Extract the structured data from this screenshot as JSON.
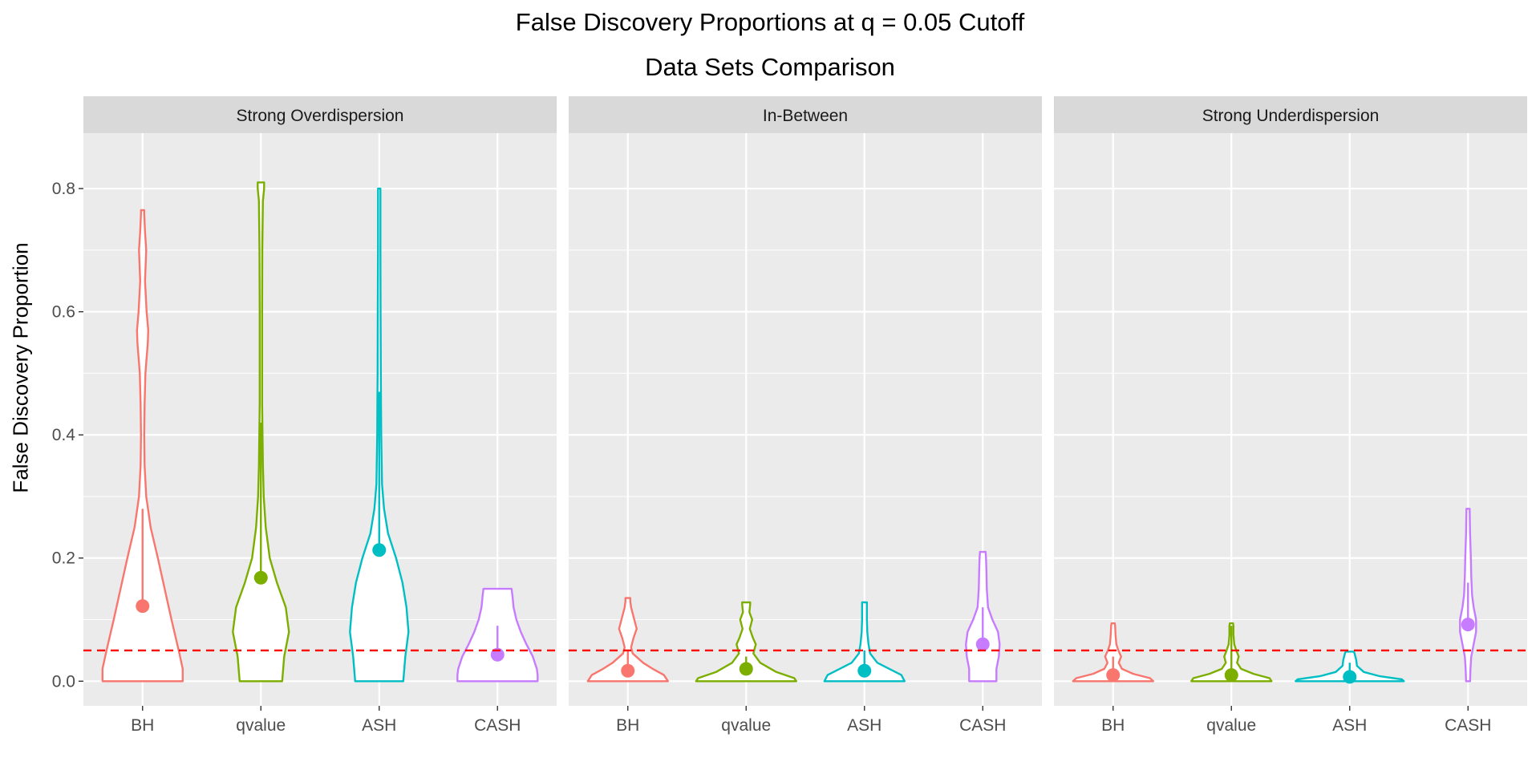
{
  "chart_data": {
    "type": "violin",
    "title": "False Discovery Proportions at q = 0.05 Cutoff",
    "subtitle": "Data Sets Comparison",
    "ylabel": "False Discovery Proportion",
    "ylim": [
      -0.04,
      0.89
    ],
    "y_ticks": [
      0.0,
      0.2,
      0.4,
      0.6,
      0.8
    ],
    "y_tick_labels": [
      "0.0",
      "0.2",
      "0.4",
      "0.6",
      "0.8"
    ],
    "reference_line": {
      "y": 0.05,
      "style": "dashed",
      "color": "#ff0000"
    },
    "categories": [
      "BH",
      "qvalue",
      "ASH",
      "CASH"
    ],
    "series_colors": {
      "BH": "#f8766d",
      "qvalue": "#7cae00",
      "ASH": "#00bfc4",
      "CASH": "#c77cff"
    },
    "panels": [
      {
        "name": "Strong Overdispersion",
        "violins": [
          {
            "method": "BH",
            "mean": 0.122,
            "line": [
              0.122,
              0.28
            ],
            "profile": [
              [
                0.0,
                1.0
              ],
              [
                0.02,
                1.0
              ],
              [
                0.05,
                0.9
              ],
              [
                0.1,
                0.72
              ],
              [
                0.15,
                0.55
              ],
              [
                0.2,
                0.38
              ],
              [
                0.25,
                0.2
              ],
              [
                0.3,
                0.09
              ],
              [
                0.35,
                0.05
              ],
              [
                0.4,
                0.04
              ],
              [
                0.45,
                0.05
              ],
              [
                0.5,
                0.07
              ],
              [
                0.55,
                0.13
              ],
              [
                0.57,
                0.14
              ],
              [
                0.6,
                0.1
              ],
              [
                0.65,
                0.06
              ],
              [
                0.7,
                0.09
              ],
              [
                0.73,
                0.06
              ],
              [
                0.76,
                0.04
              ],
              [
                0.765,
                0.04
              ]
            ]
          },
          {
            "method": "qvalue",
            "mean": 0.168,
            "line": [
              0.168,
              0.42
            ],
            "profile": [
              [
                0.0,
                0.53
              ],
              [
                0.04,
                0.58
              ],
              [
                0.08,
                0.7
              ],
              [
                0.12,
                0.62
              ],
              [
                0.16,
                0.4
              ],
              [
                0.2,
                0.22
              ],
              [
                0.25,
                0.12
              ],
              [
                0.3,
                0.07
              ],
              [
                0.35,
                0.05
              ],
              [
                0.4,
                0.04
              ],
              [
                0.45,
                0.03
              ],
              [
                0.5,
                0.03
              ],
              [
                0.6,
                0.03
              ],
              [
                0.7,
                0.035
              ],
              [
                0.78,
                0.05
              ],
              [
                0.8,
                0.08
              ],
              [
                0.81,
                0.08
              ]
            ]
          },
          {
            "method": "ASH",
            "mean": 0.213,
            "line": [
              0.213,
              0.47
            ],
            "profile": [
              [
                0.0,
                0.6
              ],
              [
                0.04,
                0.65
              ],
              [
                0.08,
                0.73
              ],
              [
                0.12,
                0.68
              ],
              [
                0.16,
                0.58
              ],
              [
                0.2,
                0.42
              ],
              [
                0.24,
                0.22
              ],
              [
                0.28,
                0.12
              ],
              [
                0.32,
                0.07
              ],
              [
                0.36,
                0.06
              ],
              [
                0.4,
                0.05
              ],
              [
                0.45,
                0.045
              ],
              [
                0.5,
                0.04
              ],
              [
                0.6,
                0.035
              ],
              [
                0.7,
                0.03
              ],
              [
                0.8,
                0.03
              ]
            ]
          },
          {
            "method": "CASH",
            "mean": 0.043,
            "line": [
              0.043,
              0.09
            ],
            "profile": [
              [
                0.0,
                1.0
              ],
              [
                0.01,
                1.0
              ],
              [
                0.02,
                0.98
              ],
              [
                0.04,
                0.88
              ],
              [
                0.06,
                0.72
              ],
              [
                0.08,
                0.58
              ],
              [
                0.1,
                0.47
              ],
              [
                0.12,
                0.4
              ],
              [
                0.14,
                0.37
              ],
              [
                0.15,
                0.35
              ]
            ]
          }
        ]
      },
      {
        "name": "In-Between",
        "violins": [
          {
            "method": "BH",
            "mean": 0.017,
            "line": [
              0.017,
              0.05
            ],
            "profile": [
              [
                0.0,
                1.0
              ],
              [
                0.01,
                0.9
              ],
              [
                0.02,
                0.62
              ],
              [
                0.03,
                0.38
              ],
              [
                0.045,
                0.12
              ],
              [
                0.055,
                0.08
              ],
              [
                0.07,
                0.14
              ],
              [
                0.085,
                0.22
              ],
              [
                0.1,
                0.16
              ],
              [
                0.12,
                0.08
              ],
              [
                0.13,
                0.06
              ],
              [
                0.135,
                0.06
              ]
            ]
          },
          {
            "method": "qvalue",
            "mean": 0.02,
            "line": [
              0.02,
              0.04
            ],
            "profile": [
              [
                0.0,
                1.25
              ],
              [
                0.005,
                1.2
              ],
              [
                0.015,
                0.75
              ],
              [
                0.03,
                0.35
              ],
              [
                0.045,
                0.18
              ],
              [
                0.06,
                0.24
              ],
              [
                0.07,
                0.17
              ],
              [
                0.085,
                0.09
              ],
              [
                0.1,
                0.15
              ],
              [
                0.112,
                0.08
              ],
              [
                0.125,
                0.1
              ],
              [
                0.128,
                0.1
              ]
            ]
          },
          {
            "method": "ASH",
            "mean": 0.017,
            "line": [
              0.017,
              0.05
            ],
            "profile": [
              [
                0.0,
                1.0
              ],
              [
                0.01,
                0.92
              ],
              [
                0.02,
                0.62
              ],
              [
                0.03,
                0.32
              ],
              [
                0.045,
                0.14
              ],
              [
                0.06,
                0.1
              ],
              [
                0.08,
                0.07
              ],
              [
                0.1,
                0.06
              ],
              [
                0.12,
                0.06
              ],
              [
                0.128,
                0.06
              ]
            ]
          },
          {
            "method": "CASH",
            "mean": 0.06,
            "line": [
              0.06,
              0.12
            ],
            "profile": [
              [
                0.0,
                0.34
              ],
              [
                0.02,
                0.34
              ],
              [
                0.04,
                0.4
              ],
              [
                0.06,
                0.42
              ],
              [
                0.08,
                0.38
              ],
              [
                0.1,
                0.24
              ],
              [
                0.12,
                0.13
              ],
              [
                0.15,
                0.1
              ],
              [
                0.18,
                0.09
              ],
              [
                0.2,
                0.08
              ],
              [
                0.21,
                0.07
              ]
            ]
          }
        ]
      },
      {
        "name": "Strong Underdispersion",
        "violins": [
          {
            "method": "BH",
            "mean": 0.01,
            "line": [
              0.01,
              0.04
            ],
            "profile": [
              [
                0.0,
                1.0
              ],
              [
                0.005,
                0.92
              ],
              [
                0.012,
                0.5
              ],
              [
                0.02,
                0.22
              ],
              [
                0.03,
                0.14
              ],
              [
                0.04,
                0.2
              ],
              [
                0.05,
                0.13
              ],
              [
                0.06,
                0.08
              ],
              [
                0.075,
                0.06
              ],
              [
                0.09,
                0.05
              ],
              [
                0.094,
                0.04
              ]
            ]
          },
          {
            "method": "qvalue",
            "mean": 0.01,
            "line": [
              0.01,
              0.09
            ],
            "profile": [
              [
                0.0,
                1.0
              ],
              [
                0.005,
                0.95
              ],
              [
                0.012,
                0.55
              ],
              [
                0.02,
                0.24
              ],
              [
                0.03,
                0.14
              ],
              [
                0.04,
                0.18
              ],
              [
                0.05,
                0.12
              ],
              [
                0.06,
                0.07
              ],
              [
                0.075,
                0.05
              ],
              [
                0.09,
                0.05
              ],
              [
                0.094,
                0.04
              ]
            ]
          },
          {
            "method": "ASH",
            "mean": 0.007,
            "line": [
              0.007,
              0.03
            ],
            "profile": [
              [
                0.0,
                1.35
              ],
              [
                0.003,
                1.3
              ],
              [
                0.008,
                0.75
              ],
              [
                0.015,
                0.35
              ],
              [
                0.025,
                0.18
              ],
              [
                0.035,
                0.16
              ],
              [
                0.045,
                0.12
              ],
              [
                0.048,
                0.1
              ]
            ]
          },
          {
            "method": "CASH",
            "mean": 0.092,
            "line": [
              0.092,
              0.16
            ],
            "profile": [
              [
                0.0,
                0.05
              ],
              [
                0.02,
                0.06
              ],
              [
                0.04,
                0.08
              ],
              [
                0.06,
                0.14
              ],
              [
                0.08,
                0.2
              ],
              [
                0.1,
                0.2
              ],
              [
                0.12,
                0.14
              ],
              [
                0.14,
                0.1
              ],
              [
                0.17,
                0.08
              ],
              [
                0.2,
                0.07
              ],
              [
                0.24,
                0.05
              ],
              [
                0.28,
                0.04
              ]
            ]
          }
        ]
      }
    ],
    "grid": true,
    "legend": "none"
  }
}
